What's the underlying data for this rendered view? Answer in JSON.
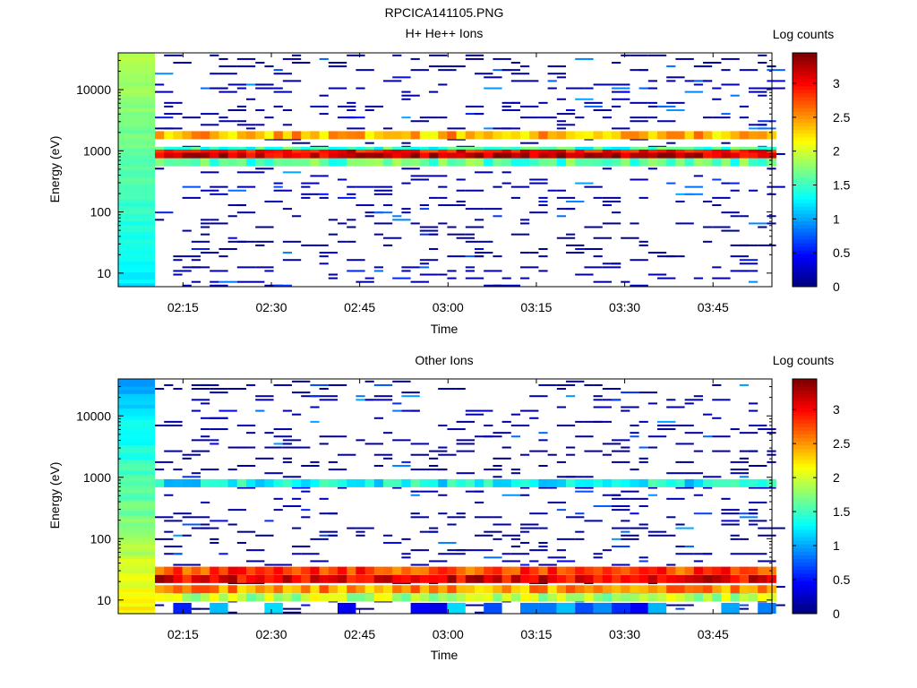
{
  "figure_title": "RPCICA141105.PNG",
  "chart_data": [
    {
      "type": "heatmap",
      "title": "H+ He++ Ions",
      "xlabel": "Time",
      "ylabel": "Energy (eV)",
      "x_ticks": [
        "02:15",
        "02:30",
        "02:45",
        "03:00",
        "03:15",
        "03:30",
        "03:45"
      ],
      "x_range": [
        "02:04",
        "03:55"
      ],
      "y_scale": "log",
      "y_ticks": [
        "10",
        "100",
        "1000",
        "10000"
      ],
      "ylim": [
        6,
        40000
      ],
      "colorbar": {
        "label": "Log counts",
        "range": [
          0,
          3.45
        ],
        "ticks": [
          "0",
          "0.5",
          "1",
          "1.5",
          "2",
          "2.5",
          "3"
        ]
      },
      "colormap": "jet",
      "bands": [
        {
          "energy_eV": 1800,
          "log_counts": 2.4
        },
        {
          "energy_eV": 1000,
          "log_counts": 1.5
        },
        {
          "energy_eV": 900,
          "log_counts": 3.0
        },
        {
          "energy_eV": 800,
          "log_counts": 3.2
        },
        {
          "energy_eV": 650,
          "log_counts": 1.6
        }
      ]
    },
    {
      "type": "heatmap",
      "title": "Other Ions",
      "xlabel": "Time",
      "ylabel": "Energy (eV)",
      "x_ticks": [
        "02:15",
        "02:30",
        "02:45",
        "03:00",
        "03:15",
        "03:30",
        "03:45"
      ],
      "x_range": [
        "02:04",
        "03:55"
      ],
      "y_scale": "log",
      "y_ticks": [
        "10",
        "100",
        "1000",
        "10000"
      ],
      "ylim": [
        6,
        40000
      ],
      "colorbar": {
        "label": "Log counts",
        "range": [
          0,
          3.45
        ],
        "ticks": [
          "0",
          "0.5",
          "1",
          "1.5",
          "2",
          "2.5",
          "3"
        ]
      },
      "colormap": "jet",
      "bands": [
        {
          "energy_eV": 800,
          "log_counts": 1.3
        },
        {
          "energy_eV": 30,
          "log_counts": 2.8
        },
        {
          "energy_eV": 22,
          "log_counts": 3.1
        },
        {
          "energy_eV": 15,
          "log_counts": 2.5
        },
        {
          "energy_eV": 11,
          "log_counts": 1.9
        }
      ]
    }
  ]
}
